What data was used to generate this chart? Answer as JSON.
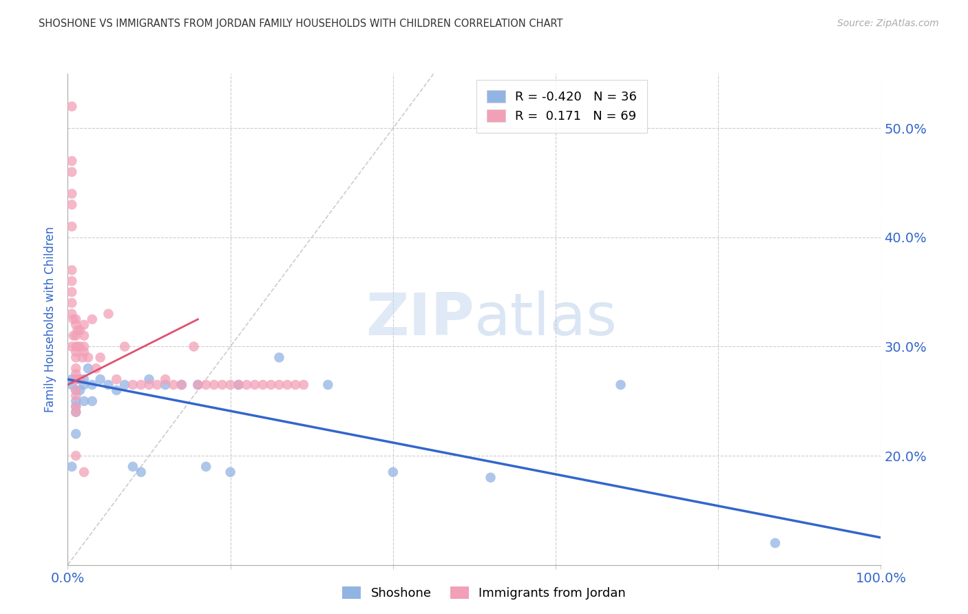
{
  "title": "SHOSHONE VS IMMIGRANTS FROM JORDAN FAMILY HOUSEHOLDS WITH CHILDREN CORRELATION CHART",
  "source": "Source: ZipAtlas.com",
  "ylabel": "Family Households with Children",
  "xlim": [
    0,
    1.0
  ],
  "ylim": [
    0.1,
    0.55
  ],
  "yticks": [
    0.2,
    0.3,
    0.4,
    0.5
  ],
  "ytick_labels": [
    "20.0%",
    "30.0%",
    "40.0%",
    "50.0%"
  ],
  "xticks": [
    0.0,
    0.2,
    0.4,
    0.6,
    0.8,
    1.0
  ],
  "legend_r_blue": "R = -0.420",
  "legend_n_blue": "N = 36",
  "legend_r_pink": "R =  0.171",
  "legend_n_pink": "N = 69",
  "shoshone_color": "#92b4e3",
  "jordan_color": "#f2a0b8",
  "trendline_blue_color": "#3366cc",
  "trendline_pink_color": "#e05070",
  "diagonal_color": "#cccccc",
  "watermark_zip": "ZIP",
  "watermark_atlas": "atlas",
  "title_color": "#333333",
  "axis_label_color": "#3366cc",
  "shoshone_x": [
    0.005,
    0.005,
    0.005,
    0.01,
    0.01,
    0.01,
    0.01,
    0.01,
    0.01,
    0.015,
    0.015,
    0.02,
    0.02,
    0.02,
    0.025,
    0.03,
    0.03,
    0.04,
    0.05,
    0.06,
    0.07,
    0.08,
    0.09,
    0.1,
    0.12,
    0.14,
    0.16,
    0.17,
    0.2,
    0.21,
    0.26,
    0.32,
    0.4,
    0.52,
    0.68,
    0.87
  ],
  "shoshone_y": [
    0.27,
    0.265,
    0.19,
    0.27,
    0.26,
    0.25,
    0.245,
    0.24,
    0.22,
    0.27,
    0.26,
    0.27,
    0.265,
    0.25,
    0.28,
    0.265,
    0.25,
    0.27,
    0.265,
    0.26,
    0.265,
    0.19,
    0.185,
    0.27,
    0.265,
    0.265,
    0.265,
    0.19,
    0.185,
    0.265,
    0.29,
    0.265,
    0.185,
    0.18,
    0.265,
    0.12
  ],
  "jordan_x": [
    0.005,
    0.005,
    0.005,
    0.005,
    0.005,
    0.005,
    0.005,
    0.005,
    0.005,
    0.005,
    0.005,
    0.005,
    0.007,
    0.007,
    0.01,
    0.01,
    0.01,
    0.01,
    0.01,
    0.01,
    0.01,
    0.01,
    0.01,
    0.01,
    0.01,
    0.01,
    0.01,
    0.01,
    0.012,
    0.012,
    0.012,
    0.015,
    0.015,
    0.015,
    0.018,
    0.02,
    0.02,
    0.02,
    0.02,
    0.02,
    0.025,
    0.03,
    0.035,
    0.04,
    0.05,
    0.06,
    0.07,
    0.08,
    0.09,
    0.1,
    0.11,
    0.12,
    0.13,
    0.14,
    0.155,
    0.16,
    0.17,
    0.18,
    0.19,
    0.2,
    0.21,
    0.22,
    0.23,
    0.24,
    0.25,
    0.26,
    0.27,
    0.28,
    0.29
  ],
  "jordan_y": [
    0.52,
    0.47,
    0.46,
    0.44,
    0.43,
    0.41,
    0.37,
    0.36,
    0.35,
    0.34,
    0.33,
    0.3,
    0.325,
    0.31,
    0.325,
    0.32,
    0.31,
    0.3,
    0.295,
    0.29,
    0.28,
    0.275,
    0.27,
    0.26,
    0.255,
    0.245,
    0.24,
    0.2,
    0.315,
    0.3,
    0.27,
    0.315,
    0.3,
    0.27,
    0.29,
    0.32,
    0.31,
    0.3,
    0.295,
    0.185,
    0.29,
    0.325,
    0.28,
    0.29,
    0.33,
    0.27,
    0.3,
    0.265,
    0.265,
    0.265,
    0.265,
    0.27,
    0.265,
    0.265,
    0.3,
    0.265,
    0.265,
    0.265,
    0.265,
    0.265,
    0.265,
    0.265,
    0.265,
    0.265,
    0.265,
    0.265,
    0.265,
    0.265,
    0.265
  ],
  "trend_blue_x0": 0.0,
  "trend_blue_x1": 1.0,
  "trend_blue_y0": 0.27,
  "trend_blue_y1": 0.125,
  "trend_pink_x0": 0.0,
  "trend_pink_x1": 0.16,
  "trend_pink_y0": 0.265,
  "trend_pink_y1": 0.325
}
